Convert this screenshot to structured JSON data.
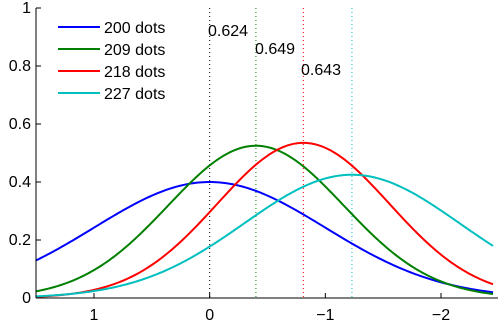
{
  "chart_data": {
    "type": "line",
    "title": "",
    "xlabel": "",
    "ylabel": "",
    "xlim": [
      1.5,
      -2.45
    ],
    "ylim": [
      0,
      1
    ],
    "x_ticks": [
      1,
      0,
      -1,
      -2
    ],
    "x_tick_labels": [
      "1",
      "0",
      "−1",
      "−2"
    ],
    "y_ticks": [
      0,
      0.2,
      0.4,
      0.6,
      0.8,
      1
    ],
    "y_tick_labels": [
      "0",
      "0.2",
      "0.4",
      "0.6",
      "0.8",
      "1"
    ],
    "grid": false,
    "legend_position": "top-left",
    "series": [
      {
        "name": "200 dots",
        "color": "#0000ff",
        "mean": 0.0,
        "sigma": 1.0,
        "peak": 0.4,
        "x": [
          1.5,
          1,
          0.5,
          0,
          -0.5,
          -1,
          -1.5,
          -2,
          -2.45
        ],
        "values": [
          0.13,
          0.24,
          0.35,
          0.4,
          0.35,
          0.24,
          0.13,
          0.05,
          0.02
        ]
      },
      {
        "name": "209 dots",
        "color": "#008000",
        "mean": -0.4,
        "sigma": 0.76,
        "peak": 0.525,
        "x": [
          1.5,
          1,
          0.5,
          0,
          -0.4,
          -1,
          -1.5,
          -2,
          -2.45
        ],
        "values": [
          0.02,
          0.09,
          0.26,
          0.46,
          0.525,
          0.38,
          0.18,
          0.06,
          0.015
        ]
      },
      {
        "name": "218 dots",
        "color": "#ff0000",
        "mean": -0.81,
        "sigma": 0.745,
        "peak": 0.535,
        "x": [
          1.5,
          1,
          0.5,
          0,
          -0.81,
          -1.5,
          -2,
          -2.45
        ],
        "values": [
          0.01,
          0.03,
          0.12,
          0.29,
          0.535,
          0.35,
          0.15,
          0.05
        ]
      },
      {
        "name": "227 dots",
        "color": "#00bfbf",
        "mean": -1.23,
        "sigma": 0.93,
        "peak": 0.425,
        "x": [
          1.5,
          1,
          0.5,
          0,
          -0.5,
          -1.23,
          -2,
          -2.45
        ],
        "values": [
          0.01,
          0.02,
          0.06,
          0.18,
          0.31,
          0.425,
          0.3,
          0.18
        ]
      }
    ],
    "reference_lines": [
      {
        "x": 0.0,
        "color": "#000000",
        "label": "0.624"
      },
      {
        "x": -0.4,
        "color": "#008000",
        "label": "0.649"
      },
      {
        "x": -0.81,
        "color": "#ff0000",
        "label": "0.643"
      },
      {
        "x": -1.23,
        "color": "#00bfbf",
        "label": ""
      }
    ]
  }
}
